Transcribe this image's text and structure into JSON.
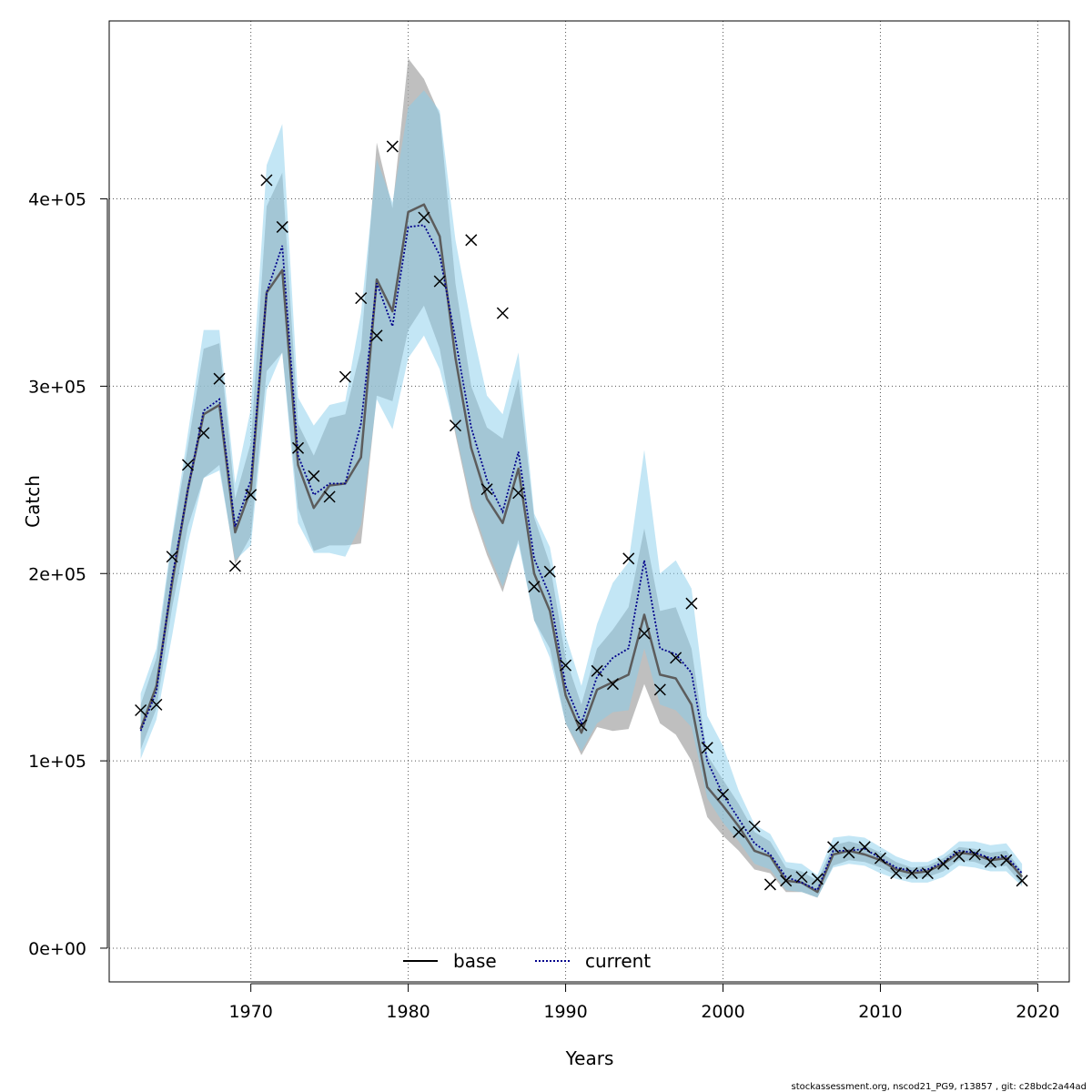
{
  "chart_data": {
    "type": "line",
    "title": "",
    "xlabel": "Years",
    "ylabel": "Catch",
    "xlim": [
      1961,
      2022
    ],
    "ylim": [
      -18000,
      495000
    ],
    "xticks": [
      1970,
      1980,
      1990,
      2000,
      2010,
      2020
    ],
    "xtick_labels": [
      "1970",
      "1980",
      "1990",
      "2000",
      "2010",
      "2020"
    ],
    "yticks": [
      0,
      100000,
      200000,
      300000,
      400000
    ],
    "ytick_labels": [
      "0e+00",
      "1e+05",
      "2e+05",
      "3e+05",
      "4e+05"
    ],
    "grid": true,
    "legend_position": "bottom-center",
    "colors": {
      "base_band": "#a9a9a9",
      "current_band": "#87ceeb",
      "base_line": "#5c5c5c",
      "current_line": "#00008b",
      "observed": "#000000"
    },
    "x": [
      1963,
      1964,
      1965,
      1966,
      1967,
      1968,
      1969,
      1970,
      1971,
      1972,
      1973,
      1974,
      1975,
      1976,
      1977,
      1978,
      1979,
      1980,
      1981,
      1982,
      1983,
      1984,
      1985,
      1986,
      1987,
      1988,
      1989,
      1990,
      1991,
      1992,
      1993,
      1994,
      1995,
      1996,
      1997,
      1998,
      1999,
      2000,
      2001,
      2002,
      2003,
      2004,
      2005,
      2006,
      2007,
      2008,
      2009,
      2010,
      2011,
      2012,
      2013,
      2014,
      2015,
      2016,
      2017,
      2018,
      2019
    ],
    "series": [
      {
        "name": "base",
        "style": "solid",
        "values": [
          117000,
          140000,
          195000,
          245000,
          285000,
          290000,
          222000,
          245000,
          350000,
          362000,
          258000,
          235000,
          247000,
          248000,
          262000,
          357000,
          340000,
          393000,
          397000,
          380000,
          315000,
          267000,
          240000,
          227000,
          256000,
          200000,
          180000,
          135000,
          115000,
          138000,
          142000,
          146000,
          178000,
          146000,
          144000,
          130000,
          86000,
          76000,
          65000,
          52000,
          49000,
          36000,
          35000,
          30000,
          50000,
          52000,
          50000,
          47000,
          42000,
          40000,
          41000,
          45000,
          51000,
          50000,
          47000,
          48000,
          38000
        ],
        "lower": [
          106000,
          128000,
          182000,
          225000,
          251000,
          258000,
          205000,
          220000,
          308000,
          318000,
          235000,
          212000,
          215000,
          215000,
          216000,
          295000,
          292000,
          330000,
          343000,
          320000,
          274000,
          235000,
          210000,
          190000,
          218000,
          175000,
          160000,
          120000,
          103000,
          118000,
          116000,
          117000,
          141000,
          120000,
          114000,
          100000,
          70000,
          60000,
          52000,
          42000,
          40000,
          30000,
          30000,
          27000,
          44000,
          47000,
          46000,
          43000,
          39000,
          37000,
          38000,
          41000,
          47000,
          46000,
          43000,
          44000,
          34000
        ],
        "upper": [
          130000,
          155000,
          218000,
          268000,
          320000,
          323000,
          240000,
          270000,
          396000,
          414000,
          280000,
          263000,
          283000,
          285000,
          320000,
          430000,
          395000,
          475000,
          464000,
          445000,
          355000,
          300000,
          278000,
          272000,
          304000,
          230000,
          205000,
          155000,
          130000,
          160000,
          170000,
          182000,
          224000,
          180000,
          182000,
          160000,
          103000,
          90000,
          77000,
          62000,
          57000,
          43000,
          41000,
          36000,
          55000,
          57000,
          55000,
          51000,
          46000,
          43000,
          44000,
          48000,
          54000,
          53000,
          51000,
          52000,
          41000
        ]
      },
      {
        "name": "current",
        "style": "dotted",
        "values": [
          116000,
          137000,
          198000,
          245000,
          287000,
          293000,
          225000,
          250000,
          350000,
          375000,
          263000,
          242000,
          248000,
          248000,
          280000,
          355000,
          332000,
          385000,
          386000,
          370000,
          325000,
          278000,
          250000,
          233000,
          265000,
          208000,
          188000,
          140000,
          120000,
          145000,
          155000,
          160000,
          207000,
          160000,
          157000,
          147000,
          100000,
          82000,
          69000,
          56000,
          50000,
          38000,
          35000,
          31000,
          52000,
          52000,
          53000,
          48000,
          43000,
          41000,
          42000,
          46000,
          52000,
          51000,
          48000,
          49000,
          40000
        ]
      },
      {
        "name": "current-band",
        "style": "band",
        "lower": [
          101000,
          122000,
          167000,
          216000,
          251000,
          255000,
          207000,
          215000,
          298000,
          318000,
          227000,
          211000,
          211000,
          209000,
          226000,
          293000,
          277000,
          315000,
          327000,
          309000,
          276000,
          238000,
          213000,
          193000,
          216000,
          175000,
          155000,
          120000,
          105000,
          120000,
          126000,
          127000,
          160000,
          130000,
          127000,
          118000,
          80000,
          67000,
          57000,
          45000,
          42000,
          31000,
          30000,
          27000,
          43000,
          45000,
          44000,
          40000,
          37000,
          35000,
          35000,
          38000,
          44000,
          43000,
          41000,
          41000,
          33000
        ],
        "upper": [
          136000,
          160000,
          220000,
          275000,
          330000,
          330000,
          248000,
          288000,
          418000,
          440000,
          294000,
          279000,
          290000,
          292000,
          339000,
          421000,
          398000,
          449000,
          458000,
          447000,
          378000,
          333000,
          295000,
          285000,
          318000,
          232000,
          214000,
          167000,
          140000,
          173000,
          195000,
          206000,
          266000,
          200000,
          207000,
          192000,
          124000,
          108000,
          84000,
          66000,
          61000,
          46000,
          45000,
          39000,
          59000,
          60000,
          59000,
          54000,
          49000,
          46000,
          46000,
          50000,
          57000,
          57000,
          55000,
          56000,
          45000
        ]
      },
      {
        "name": "observed",
        "style": "points",
        "values": [
          127000,
          130000,
          209000,
          258000,
          275000,
          304000,
          204000,
          242000,
          410000,
          385000,
          267000,
          252000,
          241000,
          305000,
          347000,
          327000,
          428000,
          null,
          390000,
          356000,
          279000,
          378000,
          245000,
          339000,
          243000,
          193000,
          201000,
          151000,
          119000,
          148000,
          141000,
          208000,
          168000,
          138000,
          155000,
          184000,
          107000,
          82000,
          62000,
          65000,
          34000,
          36000,
          38000,
          37000,
          54000,
          51000,
          54000,
          48000,
          40000,
          40000,
          40000,
          45000,
          49000,
          50000,
          46000,
          47000,
          36000
        ]
      }
    ]
  },
  "legend": {
    "items": [
      {
        "label": "base",
        "style": "solid"
      },
      {
        "label": "current",
        "style": "dotted"
      }
    ]
  },
  "footer": {
    "text": "stockassessment.org, nscod21_PG9, r13857 , git: c28bdc2a44ad"
  }
}
